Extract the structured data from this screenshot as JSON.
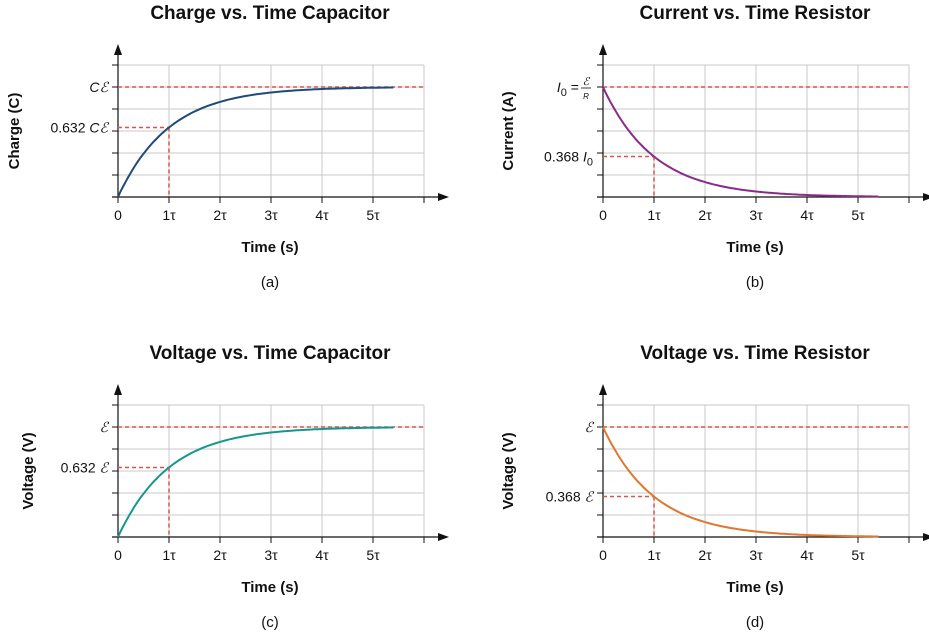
{
  "chart_data": [
    {
      "type": "line",
      "panel": "a",
      "title": "Charge vs. Time Capacitor",
      "xlabel": "Time (s)",
      "ylabel": "Charge (C)",
      "caption": "(a)",
      "xticks": [
        "0",
        "1τ",
        "2τ",
        "3τ",
        "4τ",
        "5τ"
      ],
      "xlim": [
        0,
        6
      ],
      "ylim": [
        0,
        1.2
      ],
      "grid": true,
      "curve": "1 - exp(-t/τ)",
      "yticks_labeled": [
        {
          "value": 1,
          "text": "Cℰ"
        },
        {
          "value": 0.632,
          "text": "0.632 Cℰ"
        }
      ],
      "reference": {
        "t": 1,
        "value": 0.632,
        "asymptote": 1
      },
      "color": "#1f4a7c"
    },
    {
      "type": "line",
      "panel": "b",
      "title": "Current vs. Time Resistor",
      "xlabel": "Time (s)",
      "ylabel": "Current (A)",
      "caption": "(b)",
      "xticks": [
        "0",
        "1τ",
        "2τ",
        "3τ",
        "4τ",
        "5τ"
      ],
      "xlim": [
        0,
        6
      ],
      "ylim": [
        0,
        1.2
      ],
      "grid": true,
      "curve": "exp(-t/τ)",
      "yticks_labeled": [
        {
          "value": 1,
          "text": "I0 = ℰ/R"
        },
        {
          "value": 0.368,
          "text": "0.368 I0"
        }
      ],
      "reference": {
        "t": 1,
        "value": 0.368,
        "asymptote": 1
      },
      "color": "#8a2a8a"
    },
    {
      "type": "line",
      "panel": "c",
      "title": "Voltage vs. Time Capacitor",
      "xlabel": "Time (s)",
      "ylabel": "Voltage (V)",
      "caption": "(c)",
      "xticks": [
        "0",
        "1τ",
        "2τ",
        "3τ",
        "4τ",
        "5τ"
      ],
      "xlim": [
        0,
        6
      ],
      "ylim": [
        0,
        1.2
      ],
      "grid": true,
      "curve": "1 - exp(-t/τ)",
      "yticks_labeled": [
        {
          "value": 1,
          "text": "ℰ"
        },
        {
          "value": 0.632,
          "text": "0.632 ℰ"
        }
      ],
      "reference": {
        "t": 1,
        "value": 0.632,
        "asymptote": 1
      },
      "color": "#17968f"
    },
    {
      "type": "line",
      "panel": "d",
      "title": "Voltage vs. Time Resistor",
      "xlabel": "Time (s)",
      "ylabel": "Voltage (V)",
      "caption": "(d)",
      "xticks": [
        "0",
        "1τ",
        "2τ",
        "3τ",
        "4τ",
        "5τ"
      ],
      "xlim": [
        0,
        6
      ],
      "ylim": [
        0,
        1.2
      ],
      "grid": true,
      "curve": "exp(-t/τ)",
      "yticks_labeled": [
        {
          "value": 1,
          "text": "ℰ"
        },
        {
          "value": 0.368,
          "text": "0.368 ℰ"
        }
      ],
      "reference": {
        "t": 1,
        "value": 0.368,
        "asymptote": 1
      },
      "color": "#e0772e"
    }
  ],
  "colors": {
    "reference_dash": "#d9534f",
    "grid": "#c8c8c8",
    "axis": "#111111"
  }
}
